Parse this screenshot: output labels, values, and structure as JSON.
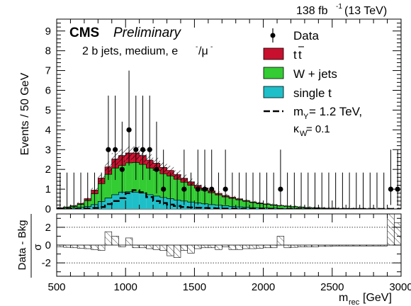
{
  "header": {
    "lumi": "138 fb",
    "lumi_exp": "-1",
    "energy": "(13 TeV)"
  },
  "cms": {
    "label": "CMS",
    "status": "Preliminary"
  },
  "selection": {
    "prefix": "2 b jets, medium, e",
    "sep": "/μ",
    "suffix_exp": "-"
  },
  "colors": {
    "ttbar": "#c8102e",
    "wjets": "#33cc33",
    "single_t": "#1ebfc8",
    "uncertainty_hatch": "#000000",
    "signal": "#000000"
  },
  "chart_data": [
    {
      "type": "bar",
      "title": "",
      "xlabel": "",
      "ylabel": "Events / 50 GeV",
      "xlim": [
        500,
        3000
      ],
      "ylim": [
        0,
        9.6
      ],
      "yticks": [
        0,
        1,
        2,
        3,
        4,
        5,
        6,
        7,
        8,
        9
      ],
      "bin_width": 50,
      "bin_edges_start": 500,
      "legend_position": "top-right",
      "legend": [
        {
          "label": "Data",
          "kind": "marker"
        },
        {
          "label": "t",
          "label_bar": "t",
          "kind": "fill",
          "series": "ttbar"
        },
        {
          "label": "W + jets",
          "kind": "fill",
          "series": "wjets"
        },
        {
          "label": "single t",
          "kind": "fill",
          "series": "single_t"
        },
        {
          "label": "m",
          "label_sub": "Y",
          "label_rest": " = 1.2 TeV,",
          "kind": "dashed-line",
          "series": "signal"
        },
        {
          "label": "κ",
          "label_sub": "W",
          "label_rest": " = 0.1",
          "kind": "none"
        }
      ],
      "series": [
        {
          "name": "single t",
          "key": "single_t",
          "values": [
            0.02,
            0.03,
            0.05,
            0.08,
            0.12,
            0.22,
            0.38,
            0.55,
            0.72,
            0.85,
            0.88,
            0.85,
            0.8,
            0.72,
            0.65,
            0.58,
            0.52,
            0.45,
            0.4,
            0.35,
            0.3,
            0.26,
            0.22,
            0.19,
            0.16,
            0.13,
            0.11,
            0.09,
            0.07,
            0.06,
            0.05,
            0.04,
            0.03,
            0.025,
            0.02,
            0.015,
            0.01,
            0.008,
            0.006,
            0.005,
            0.004,
            0.003,
            0.002,
            0.0015,
            0.001,
            0.0008,
            0.0006,
            0.0005,
            0.0004,
            0.0003
          ]
        },
        {
          "name": "W + jets",
          "key": "wjets",
          "values": [
            0.03,
            0.05,
            0.08,
            0.15,
            0.3,
            0.55,
            0.9,
            1.2,
            1.35,
            1.35,
            1.45,
            1.5,
            1.45,
            1.35,
            1.3,
            1.2,
            1.15,
            1.05,
            0.95,
            0.85,
            0.75,
            0.68,
            0.6,
            0.52,
            0.45,
            0.4,
            0.35,
            0.3,
            0.25,
            0.21,
            0.18,
            0.15,
            0.13,
            0.11,
            0.09,
            0.075,
            0.06,
            0.05,
            0.04,
            0.032,
            0.025,
            0.02,
            0.015,
            0.012,
            0.01,
            0.008,
            0.006,
            0.005,
            0.004,
            0.003
          ]
        },
        {
          "name": "t̅t",
          "key": "ttbar",
          "values": [
            0.01,
            0.02,
            0.03,
            0.05,
            0.1,
            0.18,
            0.28,
            0.38,
            0.45,
            0.5,
            0.5,
            0.48,
            0.45,
            0.4,
            0.36,
            0.32,
            0.28,
            0.24,
            0.2,
            0.17,
            0.14,
            0.12,
            0.1,
            0.08,
            0.07,
            0.06,
            0.05,
            0.04,
            0.035,
            0.03,
            0.025,
            0.02,
            0.016,
            0.013,
            0.01,
            0.008,
            0.006,
            0.005,
            0.004,
            0.003,
            0.0025,
            0.002,
            0.0015,
            0.001,
            0.0008,
            0.0006,
            0.0005,
            0.0004,
            0.0003,
            0.0002
          ]
        },
        {
          "name": "Data",
          "key": "data",
          "values": [
            0,
            0,
            0,
            0,
            0,
            0,
            0,
            3,
            3,
            2,
            4,
            3,
            3,
            3,
            2,
            1,
            0,
            0,
            1,
            0,
            1,
            1,
            1,
            0,
            1,
            0,
            0,
            0,
            0,
            0,
            0,
            0,
            1,
            0,
            0,
            0,
            0,
            0,
            0,
            0,
            0,
            0,
            0,
            0,
            0,
            0,
            0,
            0,
            1,
            1
          ]
        },
        {
          "name": "signal",
          "key": "signal",
          "values": [
            0,
            0,
            0,
            0,
            0.02,
            0.05,
            0.1,
            0.25,
            0.4,
            0.55,
            0.8,
            0.95,
            0.85,
            0.6,
            0.4,
            0.3,
            0.22,
            0.15,
            0.1,
            0.08,
            0.06,
            0.05,
            0.04,
            0.03,
            0.02,
            0.015,
            0.01,
            0.008,
            0.006,
            0.005,
            0.004,
            0.003,
            0.002,
            0.0015,
            0.001,
            0.001,
            0,
            0,
            0,
            0,
            0,
            0,
            0,
            0,
            0,
            0,
            0,
            0,
            0,
            0
          ]
        }
      ]
    },
    {
      "type": "bar",
      "title": "",
      "xlabel": "m",
      "xlabel_sub": "rec",
      "xlabel_unit": " [GeV]",
      "ylabel": "Data - Bkg",
      "ylabel_denominator": "σ",
      "xlim": [
        500,
        3000
      ],
      "ylim": [
        -3.5,
        3.5
      ],
      "yticks": [
        -2,
        0,
        2
      ],
      "xticks": [
        500,
        1000,
        1500,
        2000,
        2500,
        3000
      ],
      "dotted_lines": [
        -2,
        2
      ],
      "bin_width": 50,
      "series": [
        {
          "name": "pull",
          "key": "pull",
          "values": [
            -0.2,
            -0.25,
            -0.3,
            -0.35,
            -0.4,
            -0.5,
            -0.6,
            1.5,
            1.0,
            -0.2,
            0.8,
            -0.3,
            -0.3,
            -0.4,
            -0.5,
            -0.6,
            -1.2,
            -1.4,
            -0.6,
            -0.9,
            -0.4,
            -0.3,
            -0.3,
            -0.5,
            -0.2,
            -0.5,
            -0.5,
            -0.4,
            -0.4,
            -0.35,
            -0.3,
            -0.3,
            1.0,
            -0.3,
            -0.25,
            -0.2,
            -0.2,
            -0.2,
            -0.15,
            -0.15,
            -0.1,
            -0.1,
            -0.1,
            -0.1,
            -0.1,
            -0.1,
            -0.1,
            -0.1,
            3.5,
            2.5
          ]
        }
      ]
    }
  ]
}
